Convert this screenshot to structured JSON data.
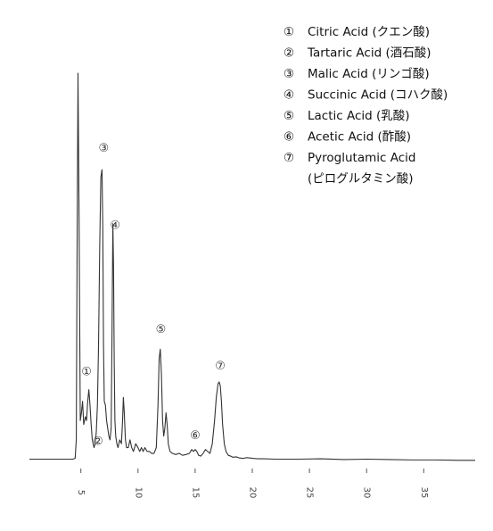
{
  "chart_data": {
    "type": "line",
    "title": "",
    "xlabel": "",
    "ylabel": "",
    "xlim": [
      0.5,
      39.5
    ],
    "ylim": [
      -1.5,
      100
    ],
    "grid": false,
    "x_ticks": [
      {
        "value": 5,
        "label": "5"
      },
      {
        "value": 10,
        "label": "10"
      },
      {
        "value": 15,
        "label": "15"
      },
      {
        "value": 20,
        "label": "20"
      },
      {
        "value": 25,
        "label": "25"
      },
      {
        "value": 30,
        "label": "30"
      },
      {
        "value": 35,
        "label": "35"
      }
    ],
    "legend_position": "top-right",
    "legend": [
      {
        "marker": "①",
        "name": "Citric Acid (クエン酸)"
      },
      {
        "marker": "②",
        "name": "Tartaric Acid (酒石酸)"
      },
      {
        "marker": "③",
        "name": "Malic Acid (リンゴ酸)"
      },
      {
        "marker": "④",
        "name": "Succinic Acid (コハク酸)"
      },
      {
        "marker": "⑤",
        "name": "Lactic Acid (乳酸)"
      },
      {
        "marker": "⑥",
        "name": "Acetic Acid (酢酸)"
      },
      {
        "marker": "⑦",
        "name": "Pyroglutamic Acid",
        "name_line2": "(ピログルタミン酸)"
      }
    ],
    "peaks": [
      {
        "id": "①",
        "rt": 5.7,
        "height": 18
      },
      {
        "id": "②",
        "rt": 6.4,
        "height": 10
      },
      {
        "id": "③",
        "rt": 6.9,
        "height": 75
      },
      {
        "id": "④",
        "rt": 7.9,
        "height": 61
      },
      {
        "id": "⑤",
        "rt": 12.0,
        "height": 28.5
      },
      {
        "id": "⑥",
        "rt": 15.0,
        "height": 2.5
      },
      {
        "id": "⑦",
        "rt": 17.2,
        "height": 20
      }
    ],
    "peak_labels": [
      {
        "label": "①",
        "x": 5.5,
        "y": 22.5
      },
      {
        "label": "②",
        "x": 6.5,
        "y": 4.5
      },
      {
        "label": "③",
        "x": 7.0,
        "y": 80.5
      },
      {
        "label": "④",
        "x": 8.0,
        "y": 60.5
      },
      {
        "label": "⑤",
        "x": 12.0,
        "y": 33.5
      },
      {
        "label": "⑥",
        "x": 15.0,
        "y": 6.0
      },
      {
        "label": "⑦",
        "x": 17.2,
        "y": 24.0
      }
    ],
    "trace": {
      "x": [
        0.5,
        4.3,
        4.5,
        4.6,
        4.68,
        4.75,
        4.85,
        4.95,
        5.05,
        5.15,
        5.25,
        5.4,
        5.5,
        5.6,
        5.7,
        5.8,
        5.9,
        6.0,
        6.15,
        6.25,
        6.35,
        6.45,
        6.55,
        6.65,
        6.75,
        6.85,
        6.92,
        6.98,
        7.05,
        7.15,
        7.25,
        7.35,
        7.45,
        7.55,
        7.65,
        7.72,
        7.8,
        7.86,
        7.92,
        7.98,
        8.05,
        8.15,
        8.25,
        8.4,
        8.55,
        8.65,
        8.72,
        8.8,
        8.9,
        9.0,
        9.15,
        9.3,
        9.45,
        9.6,
        9.8,
        10.0,
        10.15,
        10.3,
        10.45,
        10.6,
        10.8,
        11.0,
        11.2,
        11.4,
        11.6,
        11.75,
        11.85,
        11.95,
        12.05,
        12.15,
        12.25,
        12.35,
        12.45,
        12.55,
        12.65,
        12.8,
        13.0,
        13.3,
        13.6,
        13.9,
        14.2,
        14.5,
        14.7,
        14.85,
        15.0,
        15.15,
        15.3,
        15.5,
        15.7,
        15.9,
        16.1,
        16.3,
        16.5,
        16.7,
        16.85,
        17.0,
        17.1,
        17.2,
        17.3,
        17.4,
        17.55,
        17.7,
        17.9,
        18.1,
        18.3,
        18.6,
        18.9,
        19.2,
        19.5,
        19.8,
        20.1,
        20.5,
        21.0,
        22.0,
        24.0,
        26.0,
        28.0,
        30.0,
        32.0,
        34.0,
        36.0,
        38.0,
        39.5
      ],
      "y": [
        0,
        0,
        0.2,
        5,
        60,
        100,
        60,
        10,
        12,
        15,
        9,
        11,
        10,
        15,
        18,
        14,
        9,
        5,
        3,
        4,
        7,
        14,
        30,
        55,
        73,
        75,
        60,
        30,
        15,
        14,
        10,
        8,
        6,
        5,
        8,
        30,
        61,
        50,
        25,
        10,
        6,
        4,
        3,
        5,
        4,
        10,
        16,
        12,
        5,
        3,
        3,
        5,
        3,
        2,
        4,
        3,
        2,
        3,
        2,
        3,
        2,
        2,
        1.5,
        1.5,
        3,
        14,
        26,
        28.5,
        22,
        10,
        6,
        8,
        12,
        9,
        4,
        2,
        1.5,
        1.2,
        1.5,
        1,
        1.2,
        1.5,
        2.5,
        2,
        2.5,
        2,
        1,
        0.8,
        1.5,
        2.5,
        2,
        1.5,
        4,
        10,
        16,
        19.5,
        20,
        19,
        15,
        9,
        4,
        2,
        1,
        0.8,
        0.5,
        0.6,
        0.3,
        0.2,
        0.4,
        0.3,
        0.2,
        0.1,
        0.1,
        0,
        0,
        0.1,
        -0.1,
        0,
        -0.1,
        -0.2,
        -0.2,
        -0.3,
        -0.3
      ]
    },
    "colors": {
      "trace": "#333333",
      "axis": "#555555",
      "legend_text": "#111111",
      "peak_label": "#333333"
    }
  }
}
